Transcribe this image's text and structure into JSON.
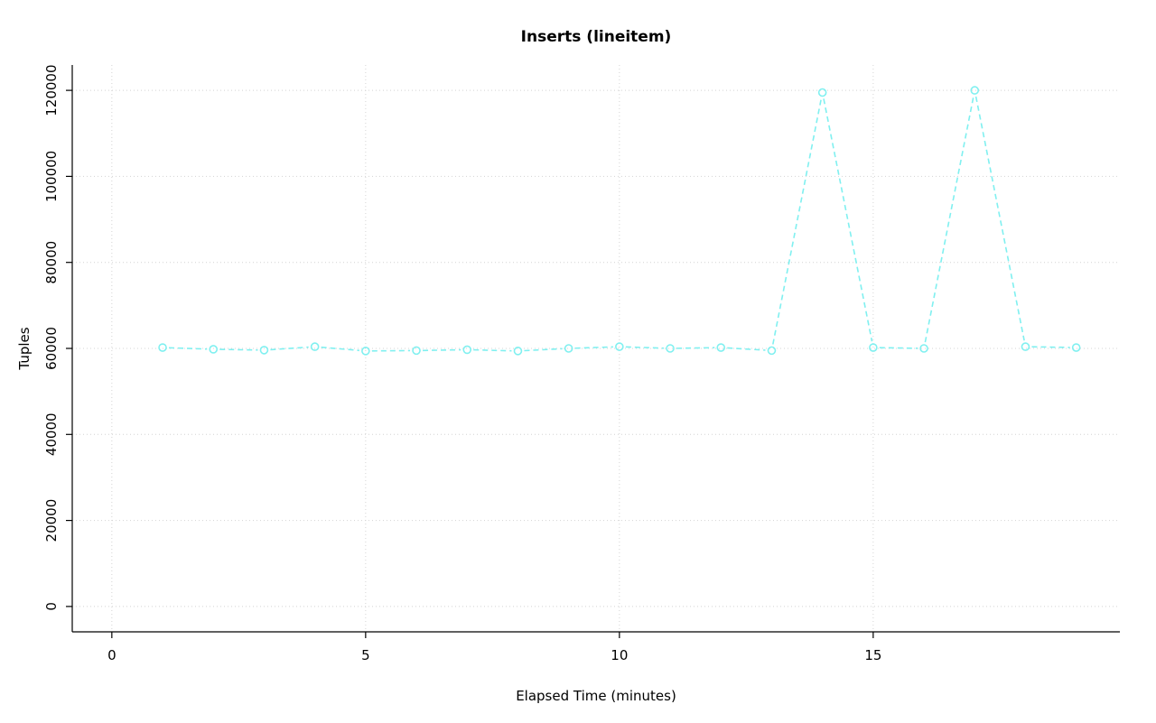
{
  "chart_data": {
    "type": "line",
    "title": "Inserts (lineitem)",
    "xlabel": "Elapsed Time (minutes)",
    "ylabel": "Tuples",
    "x": [
      1,
      2,
      3,
      4,
      5,
      6,
      7,
      8,
      9,
      10,
      11,
      12,
      13,
      14,
      15,
      16,
      17,
      18,
      19
    ],
    "values": [
      60200,
      59800,
      59600,
      60400,
      59400,
      59500,
      59700,
      59400,
      60000,
      60400,
      60000,
      60200,
      59500,
      119500,
      60200,
      60000,
      120000,
      60400,
      60200
    ],
    "xticks": [
      0,
      5,
      10,
      15
    ],
    "yticks": [
      0,
      20000,
      40000,
      60000,
      80000,
      100000,
      120000
    ],
    "xlim": [
      -0.78,
      19.86
    ],
    "ylim": [
      -5900,
      125900
    ],
    "grid": true,
    "legend": "none",
    "line_color": "#80F0F0",
    "grid_color": "#d4d4d4",
    "axis_color": "#000000",
    "marker": "open-circle",
    "line_style": "dashed"
  }
}
